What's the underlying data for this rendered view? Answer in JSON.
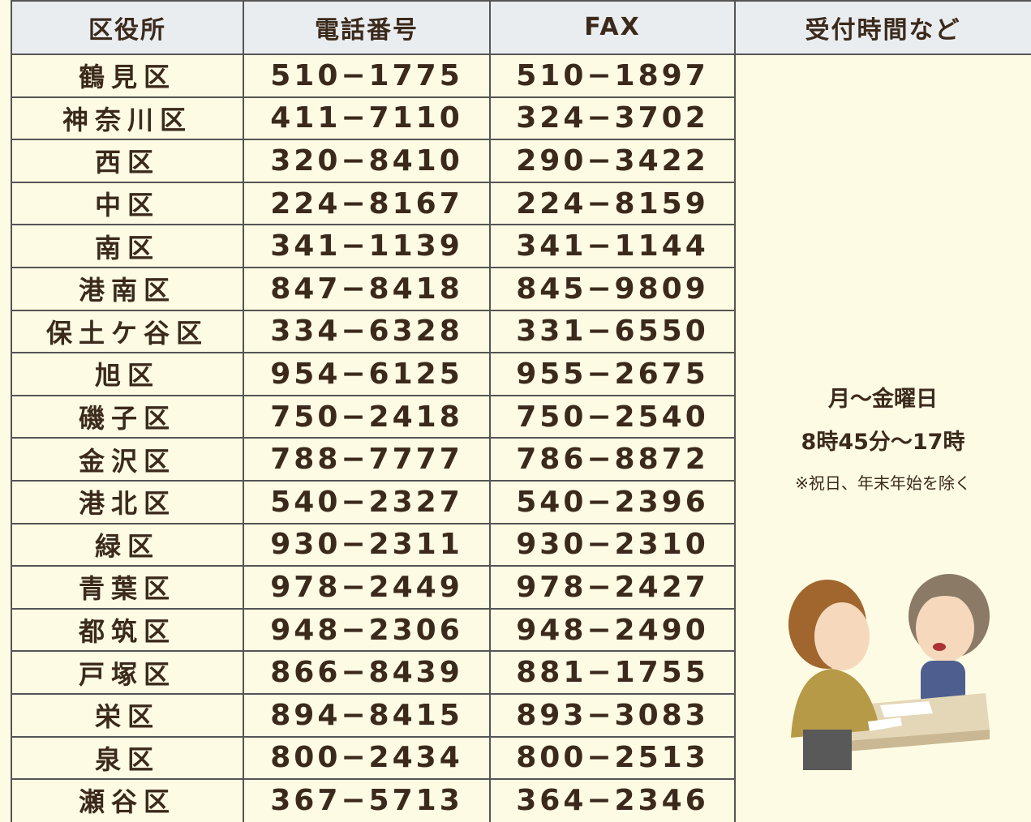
{
  "table": {
    "header": [
      "区役所",
      "電話番号",
      "FAX",
      "受付時間など"
    ],
    "rows": [
      [
        "鶴見区",
        "510−1775",
        "510−1897"
      ],
      [
        "神奈川区",
        "411−7110",
        "324−3702"
      ],
      [
        "西区",
        "320−8410",
        "290−3422"
      ],
      [
        "中区",
        "224−8167",
        "224−8159"
      ],
      [
        "南区",
        "341−1139",
        "341−1144"
      ],
      [
        "港南区",
        "847−8418",
        "845−9809"
      ],
      [
        "保土ケ谷区",
        "334−6328",
        "331−6550"
      ],
      [
        "旭区",
        "954−6125",
        "955−2675"
      ],
      [
        "磯子区",
        "750−2418",
        "750−2540"
      ],
      [
        "金沢区",
        "788−7777",
        "786−8872"
      ],
      [
        "港北区",
        "540−2327",
        "540−2396"
      ],
      [
        "緑区",
        "930−2311",
        "930−2310"
      ],
      [
        "青葉区",
        "978−2449",
        "978−2427"
      ],
      [
        "都筑区",
        "948−2306",
        "948−2490"
      ],
      [
        "戸塚区",
        "866−8439",
        "881−1755"
      ],
      [
        "栄区",
        "894−8415",
        "893−3083"
      ],
      [
        "泉区",
        "800−2434",
        "800−2513"
      ],
      [
        "瀬谷区",
        "367−5713",
        "364−2346"
      ]
    ],
    "hours": [
      "月〜金曜日",
      "8時45分〜17時",
      "※祝日、年末年始を除く"
    ]
  }
}
